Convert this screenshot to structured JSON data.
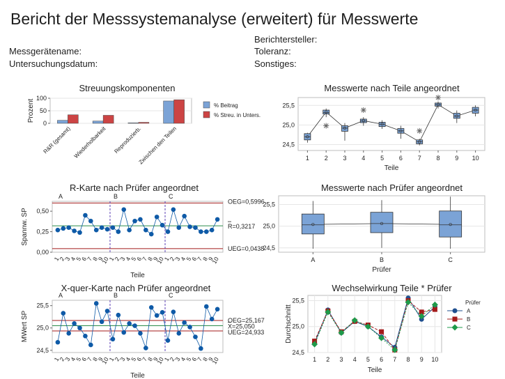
{
  "header": {
    "title": "Bericht der Messsystemanalyse (erweitert) für Messwerte",
    "gauge_name_label": "Messgerätename:",
    "study_date_label": "Untersuchungsdatum:",
    "reporter_label": "Berichtersteller:",
    "tolerance_label": "Toleranz:",
    "misc_label": "Sonstiges:"
  },
  "colors": {
    "blue": "#7ba3d6",
    "red": "#cc4444",
    "navy": "#1f4f8f",
    "point": "#0e5aa7",
    "limit": "#a31a1a",
    "center": "#2a8c4a",
    "divider": "#5b3fb5",
    "green_marker": "#1e9a4a"
  },
  "chart_data": [
    {
      "id": "variance",
      "type": "bar",
      "title": "Streuungskomponenten",
      "ylabel": "Prozent",
      "ylim": [
        0,
        100
      ],
      "yticks": [
        "0",
        "50",
        "100"
      ],
      "categories": [
        "R&R (gesamt)",
        "Wiederholbarkeit",
        "Reproduzierb.",
        "Zwischen den Teilen"
      ],
      "series": [
        {
          "name": "% Beitrag",
          "values": [
            12,
            9,
            2,
            89
          ]
        },
        {
          "name": "% Streu. in Unters.",
          "values": [
            34,
            32,
            4,
            94
          ]
        }
      ]
    },
    {
      "id": "by_part",
      "type": "box",
      "title": "Messwerte nach Teile angeordnet",
      "xlabel": "Teile",
      "categories": [
        "1",
        "2",
        "3",
        "4",
        "5",
        "6",
        "7",
        "8",
        "9",
        "10"
      ],
      "ylim": [
        24.35,
        25.7
      ],
      "yticks": [
        "24,5",
        "25,0",
        "25,5"
      ],
      "boxes": [
        {
          "q1": 24.62,
          "median": 24.7,
          "q3": 24.78,
          "low": 24.55,
          "high": 24.8,
          "mean": 24.7
        },
        {
          "q1": 25.28,
          "median": 25.32,
          "q3": 25.38,
          "low": 25.2,
          "high": 25.42,
          "mean": 25.33,
          "outliers": [
            24.98
          ]
        },
        {
          "q1": 24.84,
          "median": 24.92,
          "q3": 24.98,
          "low": 24.6,
          "high": 25.05,
          "mean": 24.92
        },
        {
          "q1": 25.06,
          "median": 25.1,
          "q3": 25.15,
          "low": 24.98,
          "high": 25.2,
          "mean": 25.11,
          "outliers": [
            25.38
          ]
        },
        {
          "q1": 24.96,
          "median": 25.02,
          "q3": 25.07,
          "low": 24.9,
          "high": 25.12,
          "mean": 25.02
        },
        {
          "q1": 24.79,
          "median": 24.85,
          "q3": 24.91,
          "low": 24.65,
          "high": 24.98,
          "mean": 24.85
        },
        {
          "q1": 24.52,
          "median": 24.57,
          "q3": 24.62,
          "low": 24.48,
          "high": 24.65,
          "mean": 24.57,
          "outliers": [
            24.85
          ]
        },
        {
          "q1": 25.48,
          "median": 25.52,
          "q3": 25.56,
          "low": 25.42,
          "high": 25.6,
          "mean": 25.52,
          "outliers": [
            25.7
          ]
        },
        {
          "q1": 25.17,
          "median": 25.23,
          "q3": 25.3,
          "low": 25.05,
          "high": 25.37,
          "mean": 25.23
        },
        {
          "q1": 25.3,
          "median": 25.38,
          "q3": 25.45,
          "low": 25.22,
          "high": 25.5,
          "mean": 25.38
        }
      ]
    },
    {
      "id": "r_chart",
      "type": "line",
      "title": "R-Karte nach Prüfer angeordnet",
      "xlabel": "Teile",
      "ylabel": "Spannw. SP",
      "ylim": [
        0,
        0.62
      ],
      "yticks": [
        "0,00",
        "0,25",
        "0,50"
      ],
      "groups": [
        "A",
        "B",
        "C"
      ],
      "xticks": [
        "1",
        "2",
        "3",
        "4",
        "5",
        "6",
        "7",
        "8",
        "9",
        "10",
        "1",
        "2",
        "3",
        "4",
        "5",
        "6",
        "7",
        "8",
        "9",
        "10",
        "1",
        "2",
        "3",
        "4",
        "5",
        "6",
        "7",
        "8",
        "9",
        "10"
      ],
      "values": [
        0.27,
        0.29,
        0.3,
        0.26,
        0.24,
        0.45,
        0.38,
        0.27,
        0.3,
        0.28,
        0.3,
        0.25,
        0.52,
        0.27,
        0.38,
        0.4,
        0.27,
        0.22,
        0.43,
        0.33,
        0.25,
        0.52,
        0.3,
        0.44,
        0.31,
        0.3,
        0.25,
        0.25,
        0.27,
        0.4
      ],
      "limits": {
        "ucl": 0.5996,
        "center": 0.3217,
        "lcl": 0.0438
      },
      "limit_labels": {
        "ucl": "OEG=0,5996",
        "center": "R=0,3217",
        "lcl": "UEG=0,0438"
      }
    },
    {
      "id": "by_operator",
      "type": "box",
      "title": "Messwerte nach Prüfer angeordnet",
      "xlabel": "Prüfer",
      "categories": [
        "A",
        "B",
        "C"
      ],
      "ylim": [
        24.4,
        25.7
      ],
      "yticks": [
        "24,5",
        "25,0",
        "25,5"
      ],
      "boxes": [
        {
          "q1": 24.82,
          "median": 25.03,
          "q3": 25.28,
          "low": 24.48,
          "high": 25.58,
          "mean": 25.04
        },
        {
          "q1": 24.85,
          "median": 25.06,
          "q3": 25.32,
          "low": 24.5,
          "high": 25.6,
          "mean": 25.06
        },
        {
          "q1": 24.75,
          "median": 25.03,
          "q3": 25.35,
          "low": 24.48,
          "high": 25.68,
          "mean": 25.04
        }
      ]
    },
    {
      "id": "xbar_chart",
      "type": "line",
      "title": "X-quer-Karte nach Prüfer angeordnet",
      "xlabel": "Teile",
      "ylabel": "MWert SP",
      "ylim": [
        24.45,
        25.62
      ],
      "yticks": [
        "24,5",
        "25,0",
        "25,5"
      ],
      "groups": [
        "A",
        "B",
        "C"
      ],
      "xticks": [
        "1",
        "2",
        "3",
        "4",
        "5",
        "6",
        "7",
        "8",
        "9",
        "10",
        "1",
        "2",
        "3",
        "4",
        "5",
        "6",
        "7",
        "8",
        "9",
        "10",
        "1",
        "2",
        "3",
        "4",
        "5",
        "6",
        "7",
        "8",
        "9",
        "10"
      ],
      "values": [
        24.68,
        25.33,
        24.88,
        25.1,
        25.0,
        24.82,
        24.62,
        25.55,
        25.14,
        25.38,
        24.75,
        25.29,
        24.9,
        25.1,
        25.05,
        24.88,
        24.55,
        25.46,
        25.28,
        25.35,
        24.72,
        25.36,
        24.88,
        25.12,
        25.02,
        24.8,
        24.54,
        25.48,
        25.2,
        25.42
      ],
      "limits": {
        "ucl": 25.167,
        "center": 25.05,
        "lcl": 24.933
      },
      "limit_labels": {
        "ucl": "OEG=25,167",
        "center": "X=25,050",
        "lcl": "UEG=24,933"
      }
    },
    {
      "id": "interaction",
      "type": "line",
      "title": "Wechselwirkung Teile * Prüfer",
      "xlabel": "Teile",
      "ylabel": "Durchschnitt",
      "legend_title": "Prüfer",
      "categories": [
        "1",
        "2",
        "3",
        "4",
        "5",
        "6",
        "7",
        "8",
        "9",
        "10"
      ],
      "ylim": [
        24.5,
        25.6
      ],
      "yticks": [
        "24,5",
        "25,0",
        "25,5"
      ],
      "series": [
        {
          "name": "A",
          "values": [
            24.68,
            25.32,
            24.88,
            25.1,
            25.0,
            24.8,
            24.6,
            25.55,
            25.14,
            25.38
          ]
        },
        {
          "name": "B",
          "values": [
            24.72,
            25.3,
            24.9,
            25.1,
            25.03,
            24.9,
            24.55,
            25.5,
            25.28,
            25.33
          ]
        },
        {
          "name": "C",
          "values": [
            24.66,
            25.28,
            24.88,
            25.12,
            25.0,
            24.78,
            24.55,
            25.47,
            25.2,
            25.42
          ]
        }
      ]
    }
  ]
}
